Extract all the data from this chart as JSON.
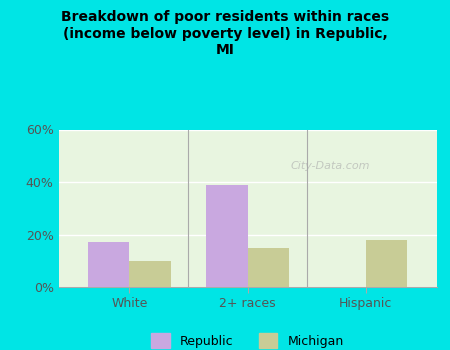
{
  "title": "Breakdown of poor residents within races\n(income below poverty level) in Republic,\nMI",
  "categories": [
    "White",
    "2+ races",
    "Hispanic"
  ],
  "republic_values": [
    17,
    39,
    0
  ],
  "michigan_values": [
    10,
    15,
    18
  ],
  "republic_color": "#c9a8e0",
  "michigan_color": "#c8cc96",
  "ylim": [
    0,
    60
  ],
  "yticks": [
    0,
    20,
    40,
    60
  ],
  "ytick_labels": [
    "0%",
    "20%",
    "40%",
    "60%"
  ],
  "bg_color_title": "#00e5e5",
  "bg_color_plot": "#e8f5e0",
  "watermark": "City-Data.com",
  "bar_width": 0.35,
  "legend_labels": [
    "Republic",
    "Michigan"
  ]
}
